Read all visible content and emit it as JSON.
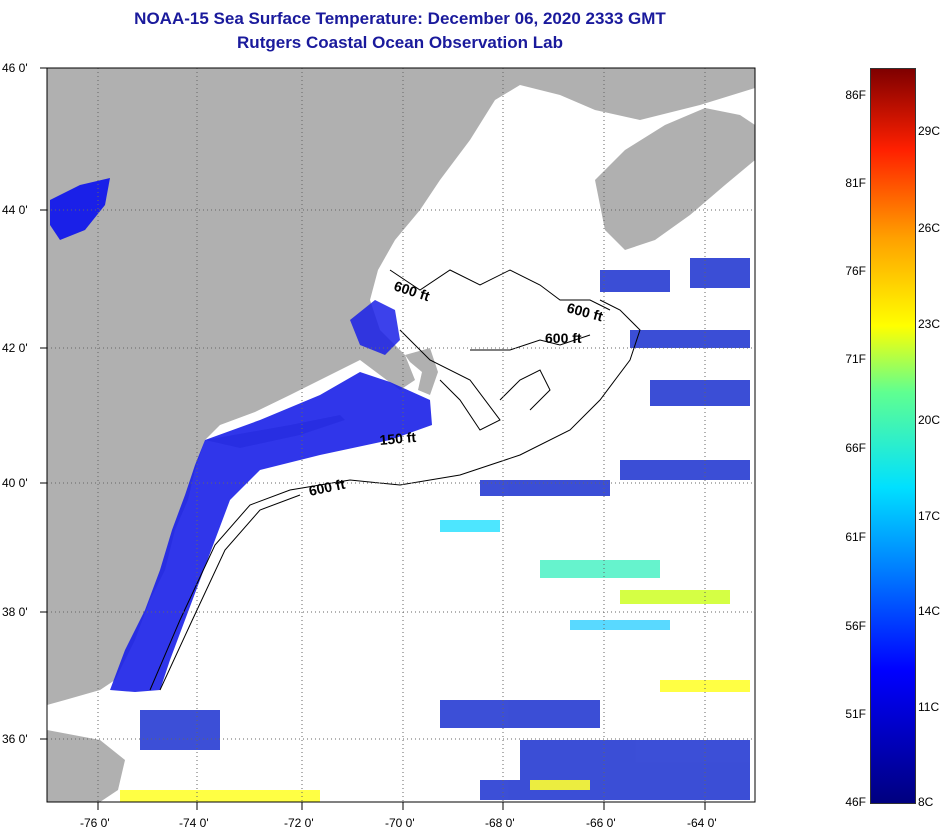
{
  "title": {
    "line1": "NOAA-15 Sea Surface Temperature:  December 06, 2020 2333 GMT",
    "line2": "Rutgers Coastal Ocean Observation Lab"
  },
  "colors": {
    "title": "#1a1a9c",
    "land": "#b0b0b0",
    "cloud": "#ffffff",
    "cold_water": "#1010e0",
    "warm_water": "#ffff30"
  },
  "axes": {
    "lat_labels": [
      "46 0'",
      "44 0'",
      "42 0'",
      "40 0'",
      "38 0'",
      "36 0'"
    ],
    "lon_labels": [
      "-76 0'",
      "-74 0'",
      "-72 0'",
      "-70 0'",
      "-68 0'",
      "-66 0'",
      "-64 0'"
    ]
  },
  "contours": {
    "labels": [
      "600 ft",
      "600 ft",
      "600 ft",
      "150 ft",
      "600 ft"
    ]
  },
  "colorbar": {
    "fahrenheit": [
      "86F",
      "81F",
      "76F",
      "71F",
      "66F",
      "61F",
      "56F",
      "51F",
      "46F"
    ],
    "celsius": [
      "29C",
      "26C",
      "23C",
      "20C",
      "17C",
      "14C",
      "11C",
      "8C"
    ],
    "range_c": [
      8,
      31
    ]
  }
}
